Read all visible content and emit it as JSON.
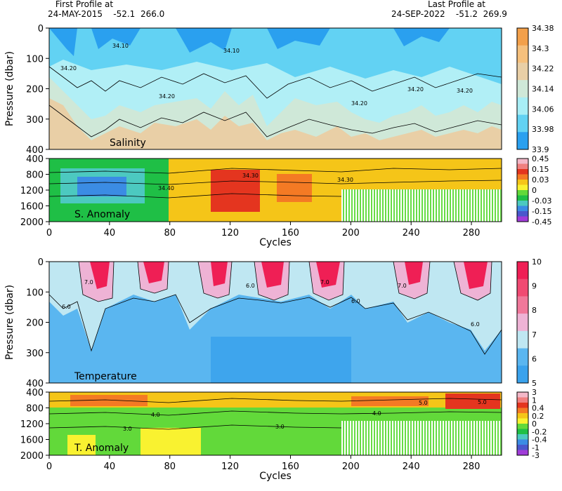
{
  "header": {
    "first_profile_label": "First Profile at",
    "first_profile_value": "24-MAY-2015    -52.1  266.0",
    "last_profile_label": "Last Profile at",
    "last_profile_value": "24-SEP-2022    -51.2  269.9"
  },
  "chart_data": [
    {
      "type": "heatmap",
      "name": "Salinity",
      "panel_label": "Salinity",
      "ylabel": "Pressure (dbar)",
      "ylim": [
        400,
        0
      ],
      "yticks": [
        "0",
        "100",
        "200",
        "300",
        "400"
      ],
      "xlim": [
        0,
        300
      ],
      "colorbar": {
        "labels": [
          "34.38",
          "34.3",
          "34.22",
          "34.14",
          "34.06",
          "33.98",
          "33.9"
        ],
        "colors": [
          "#f3a04a",
          "#f6c07c",
          "#e9cfa6",
          "#cfe8d8",
          "#a8eef6",
          "#62d2f3",
          "#2aa0ef"
        ]
      },
      "contour_labels": [
        "34.20",
        "34.10",
        "34.20",
        "34.10",
        "34.20",
        "34.20",
        "34.20"
      ]
    },
    {
      "type": "heatmap",
      "name": "S. Anomaly",
      "panel_label": "S. Anomaly",
      "ylim": [
        2000,
        400
      ],
      "yticks": [
        "400",
        "800",
        "1200",
        "1600",
        "2000"
      ],
      "xlim": [
        0,
        300
      ],
      "xticks": [
        "0",
        "40",
        "80",
        "120",
        "160",
        "200",
        "240",
        "280"
      ],
      "xlabel": "Cycles",
      "colorbar": {
        "labels": [
          "0.45",
          "0.15",
          "0.03",
          "0",
          "-0.03",
          "-0.15",
          "-0.45"
        ],
        "colors": [
          "#f3b8c8",
          "#f08080",
          "#e4351f",
          "#f47a24",
          "#f5c518",
          "#f9f230",
          "#62d93a",
          "#1fbf46",
          "#4cc9c0",
          "#3b8ce4",
          "#4a57cc",
          "#a03cd8"
        ]
      },
      "contour_labels": [
        "34.30",
        "34.40",
        "34.30"
      ]
    },
    {
      "type": "heatmap",
      "name": "Temperature",
      "panel_label": "Temperature",
      "ylabel": "Pressure (dbar)",
      "ylim": [
        400,
        0
      ],
      "yticks": [
        "0",
        "100",
        "200",
        "300",
        "400"
      ],
      "xlim": [
        0,
        300
      ],
      "colorbar": {
        "labels": [
          "10",
          "9",
          "8",
          "7",
          "6",
          "5"
        ],
        "colors": [
          "#ef1f55",
          "#f04a72",
          "#f0789a",
          "#eeb3d5",
          "#bfe7f2",
          "#5ab6f0",
          "#3aa2ec"
        ]
      },
      "contour_labels": [
        "6.0",
        "7.0",
        "6.0",
        "7.0",
        "6.0",
        "7.0",
        "6.0"
      ]
    },
    {
      "type": "heatmap",
      "name": "T. Anomaly",
      "panel_label": "T. Anomaly",
      "ylim": [
        2000,
        400
      ],
      "yticks": [
        "400",
        "800",
        "1200",
        "1600",
        "2000"
      ],
      "xlim": [
        0,
        300
      ],
      "xticks": [
        "0",
        "40",
        "80",
        "120",
        "160",
        "200",
        "240",
        "280"
      ],
      "xlabel": "Cycles",
      "colorbar": {
        "labels": [
          "3",
          "1",
          "0.4",
          "0.2",
          "0",
          "-0.2",
          "-0.4",
          "-1",
          "-3"
        ],
        "colors": [
          "#f3b8c8",
          "#f08080",
          "#e4351f",
          "#f47a24",
          "#f5c518",
          "#f9f230",
          "#62d93a",
          "#1fbf46",
          "#4cc9c0",
          "#3b8ce4",
          "#4a57cc",
          "#a03cd8"
        ]
      },
      "contour_labels": [
        "4.0",
        "5.0",
        "3.0",
        "3.0",
        "4.0",
        "5.0"
      ]
    }
  ]
}
